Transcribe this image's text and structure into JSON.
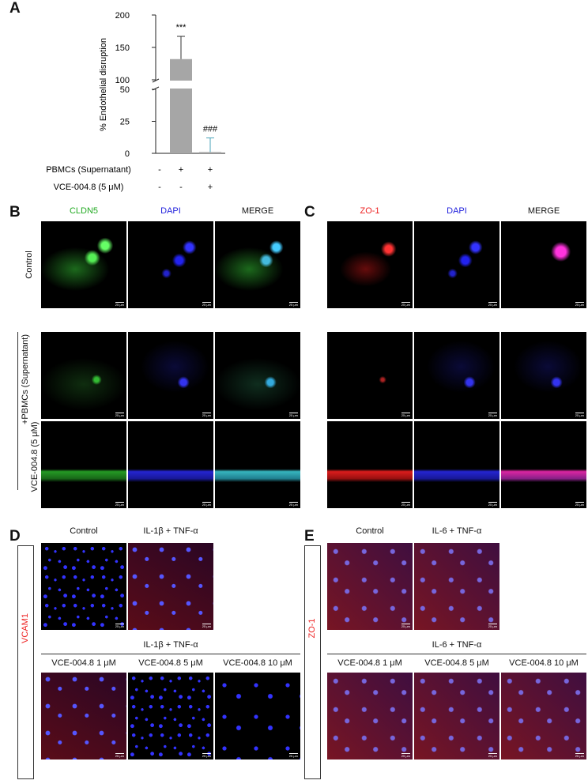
{
  "chart_data": {
    "type": "bar",
    "panel_label": "A",
    "y_label": "% Endothelial disruption",
    "values": [
      0,
      132,
      1
    ],
    "errors": [
      0,
      35,
      11
    ],
    "annotations": [
      null,
      "***",
      "###"
    ],
    "color": "#a6a6a6",
    "error_colors": [
      "#333333",
      "#333333",
      "#4aa3b8"
    ],
    "ylim": [
      0,
      200
    ],
    "yticks": [
      0,
      25,
      50,
      100,
      150,
      200
    ],
    "axis_break": [
      50,
      100
    ],
    "conditions": [
      {
        "label": "PBMCs (Supernatant)",
        "signs": [
          "-",
          "+",
          "+"
        ]
      },
      {
        "label": "VCE-004.8 (5 μM)",
        "signs": [
          "-",
          "-",
          "+"
        ]
      }
    ]
  },
  "panels": {
    "b": {
      "label": "B",
      "columns": [
        "CLDN5",
        "DAPI",
        "MERGE"
      ]
    },
    "c": {
      "label": "C",
      "columns": [
        "ZO-1",
        "DAPI",
        "MERGE"
      ]
    },
    "rows": [
      "Control",
      "+PBMCs (Supernatant)",
      "VCE-004.8 (5 μM)"
    ],
    "d": {
      "label": "D",
      "marker": "VCAM1",
      "top": [
        "Control",
        "IL-1β + TNF-α"
      ],
      "group": "IL-1β + TNF-α",
      "bottom": [
        "VCE-004.8 1 μM",
        "VCE-004.8 5 μM",
        "VCE-004.8 10 μM"
      ]
    },
    "e": {
      "label": "E",
      "marker": "ZO-1",
      "top": [
        "Control",
        "IL-6 + TNF-α"
      ],
      "group": "IL-6 + TNF-α",
      "bottom": [
        "VCE-004.8 1 μM",
        "VCE-004.8 5 μM",
        "VCE-004.8 10 μM"
      ]
    }
  },
  "scale_label": "25 μm"
}
